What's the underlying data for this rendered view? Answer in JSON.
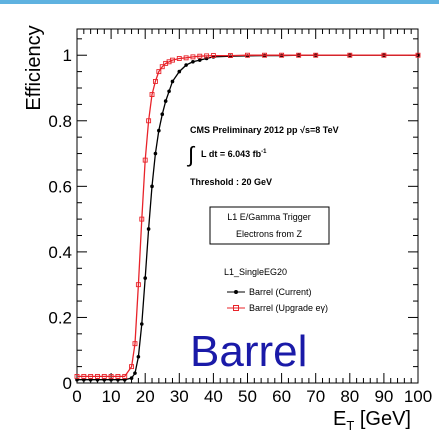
{
  "accent_bar_color": "#5fb2e0",
  "chart_data": {
    "type": "line",
    "title": "",
    "xlabel": "E",
    "xlabel_sub": "T",
    "xlabel_unit": "[GeV]",
    "ylabel": "Efficiency",
    "xlim": [
      0,
      100
    ],
    "ylim": [
      0,
      1.08
    ],
    "x_ticks": [
      "0",
      "10",
      "20",
      "30",
      "40",
      "50",
      "60",
      "70",
      "80",
      "90",
      "100"
    ],
    "y_ticks": [
      "0",
      "0.2",
      "0.4",
      "0.6",
      "0.8",
      "1"
    ],
    "grid": false,
    "legend_position": "center-right",
    "series": [
      {
        "name": "Barrel (Current)",
        "color": "#000000",
        "marker": "filled-circle",
        "x": [
          0,
          2,
          4,
          6,
          8,
          10,
          12,
          14,
          16,
          17,
          18,
          19,
          20,
          21,
          22,
          23,
          24,
          25,
          26,
          27,
          28,
          30,
          32,
          34,
          36,
          38,
          40,
          45,
          50,
          55,
          60,
          65,
          70,
          80,
          90,
          100
        ],
        "y": [
          0.01,
          0.01,
          0.01,
          0.01,
          0.01,
          0.01,
          0.01,
          0.01,
          0.015,
          0.03,
          0.08,
          0.18,
          0.32,
          0.47,
          0.6,
          0.7,
          0.77,
          0.82,
          0.86,
          0.89,
          0.92,
          0.95,
          0.97,
          0.98,
          0.985,
          0.99,
          0.995,
          0.997,
          0.998,
          0.999,
          0.999,
          1.0,
          1.0,
          1.0,
          1.0,
          1.0
        ]
      },
      {
        "name": "Barrel (Upgrade eγ)",
        "color": "#e8232a",
        "marker": "open-square",
        "x": [
          0,
          2,
          4,
          6,
          8,
          10,
          12,
          14,
          16,
          17,
          18,
          19,
          20,
          21,
          22,
          23,
          24,
          25,
          26,
          27,
          28,
          30,
          32,
          34,
          36,
          38,
          40,
          45,
          50,
          55,
          60,
          65,
          70,
          80,
          90,
          100
        ],
        "y": [
          0.02,
          0.02,
          0.02,
          0.02,
          0.02,
          0.02,
          0.02,
          0.02,
          0.05,
          0.12,
          0.3,
          0.5,
          0.68,
          0.8,
          0.88,
          0.92,
          0.95,
          0.965,
          0.975,
          0.98,
          0.985,
          0.99,
          0.992,
          0.995,
          0.997,
          0.998,
          0.999,
          0.999,
          1.0,
          1.0,
          1.0,
          1.0,
          1.0,
          1.0,
          1.0,
          1.0
        ]
      }
    ],
    "annotations": {
      "cms_line": "CMS Preliminary 2012 pp  √s=8 TeV",
      "lumi": "L dt = 6.043 fb",
      "lumi_exp": "-1",
      "threshold": "Threshold : 20 GeV",
      "box_line1": "L1 E/Gamma Trigger",
      "box_line2": "Electrons from Z",
      "legend_header": "L1_SingleEG20",
      "region": "Barrel"
    }
  }
}
